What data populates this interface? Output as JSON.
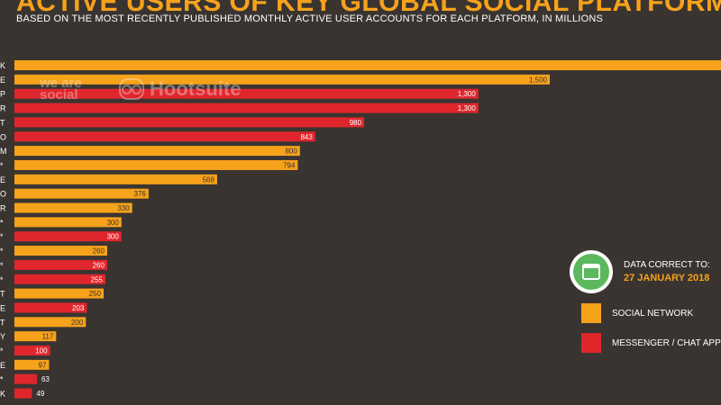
{
  "header": {
    "title": "ACTIVE USERS OF KEY GLOBAL SOCIAL PLATFORMS",
    "subtitle": "BASED ON THE MOST RECENTLY PUBLISHED MONTHLY ACTIVE USER ACCOUNTS FOR EACH PLATFORM, IN MILLIONS"
  },
  "watermark": {
    "brand_1": "we are social",
    "brand_2": "Hootsuite"
  },
  "date_note": {
    "line1": "DATA CORRECT TO:",
    "line2": "27 JANUARY 2018"
  },
  "legend": {
    "social": "SOCIAL NETWORK",
    "messenger": "MESSENGER / CHAT APP"
  },
  "colors": {
    "background": "#3a3431",
    "social": "#f7a21b",
    "messenger": "#e0262d",
    "accent_green": "#5cb85c"
  },
  "chart_data": {
    "type": "bar",
    "orientation": "horizontal",
    "row_label_suffixes": [
      "K",
      "E",
      "P",
      "R",
      "T",
      "O",
      "M",
      "*",
      "E",
      "O",
      "R",
      "*",
      "*",
      "*",
      "*",
      "*",
      "T",
      "E",
      "T",
      "Y",
      "*",
      "E",
      "*",
      "K"
    ],
    "values": [
      null,
      1500,
      1300,
      1300,
      980,
      843,
      800,
      794,
      568,
      376,
      330,
      300,
      300,
      260,
      260,
      255,
      250,
      203,
      200,
      117,
      100,
      97,
      63,
      49
    ],
    "value_labels": [
      "",
      "1,500",
      "1,300",
      "1,300",
      "980",
      "843",
      "800",
      "794",
      "568",
      "376",
      "330",
      "300",
      "300",
      "260",
      "260",
      "255",
      "250",
      "203",
      "200",
      "117",
      "100",
      "97",
      "63",
      "49"
    ],
    "series_type": [
      "social",
      "social",
      "messenger",
      "messenger",
      "messenger",
      "messenger",
      "social",
      "social",
      "social",
      "social",
      "social",
      "social",
      "messenger",
      "social",
      "messenger",
      "messenger",
      "social",
      "messenger",
      "social",
      "social",
      "messenger",
      "social",
      "messenger",
      "messenger"
    ],
    "first_bar_extends_beyond_view": true,
    "xlim": [
      0,
      1500
    ]
  }
}
